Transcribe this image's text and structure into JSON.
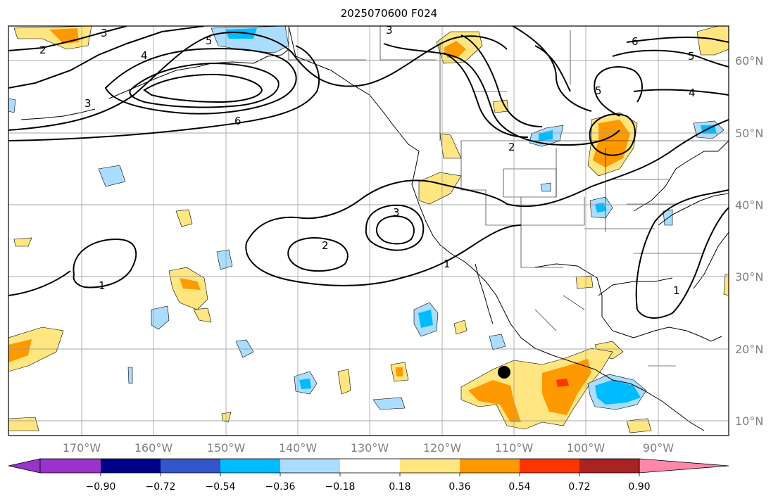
{
  "title": "2025070600 F024",
  "lat_labels": [
    "60°N",
    "50°N",
    "40°N",
    "30°N",
    "20°N",
    "10°N"
  ],
  "lon_labels": [
    "170°W",
    "160°W",
    "150°W",
    "140°W",
    "130°W",
    "120°W",
    "110°W",
    "100°W",
    "90°W"
  ],
  "contour_labels": [
    "2",
    "3",
    "4",
    "3",
    "5",
    "6",
    "3",
    "5",
    "6",
    "5",
    "4",
    "2",
    "2",
    "3",
    "1",
    "1",
    "1"
  ],
  "colorbar": {
    "tick_labels": [
      "−0.90",
      "−0.72",
      "−0.54",
      "−0.36",
      "−0.18",
      "0.18",
      "0.36",
      "0.54",
      "0.72",
      "0.90"
    ],
    "colors": [
      "#9933cc",
      "#000088",
      "#3355cc",
      "#00bbff",
      "#aaddff",
      "#ffffff",
      "#ffe680",
      "#ff9900",
      "#ff3300",
      "#aa2222",
      "#ff88aa"
    ]
  },
  "marker_icon": "black-dot"
}
